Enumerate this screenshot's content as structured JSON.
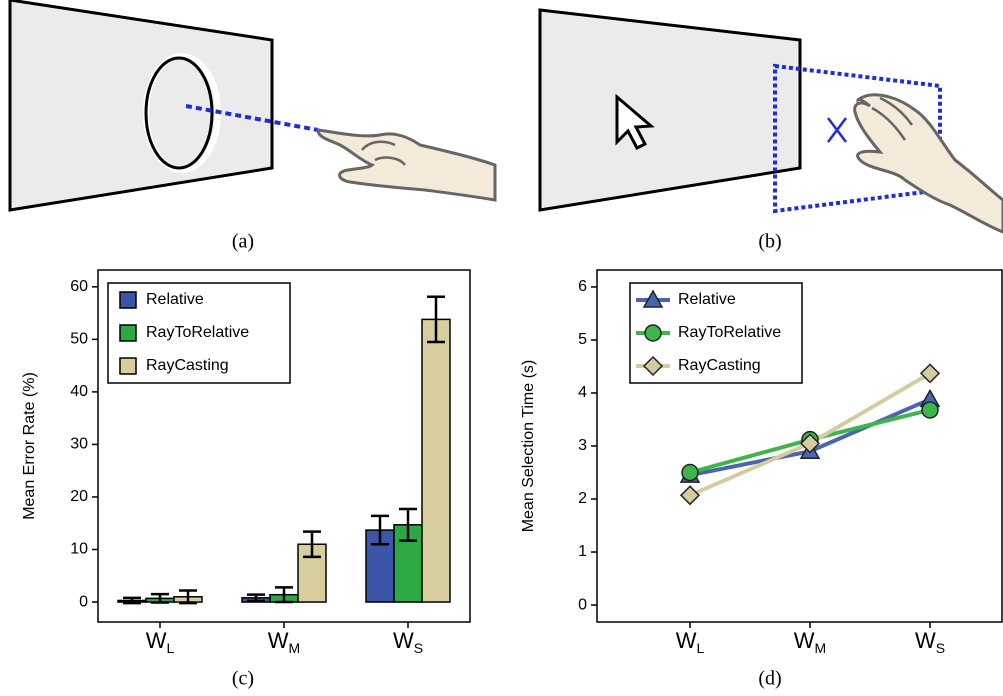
{
  "captions": [
    "(a)",
    "(b)",
    "(c)",
    "(d)"
  ],
  "chart_data": [
    {
      "type": "bar",
      "y_label": "Mean Error Rate (%)",
      "categories": [
        "WL",
        "WM",
        "WS"
      ],
      "series": [
        {
          "name": "Relative",
          "color": "#3b56a8",
          "values": [
            0.3,
            0.8,
            13.7
          ],
          "errors": [
            0.5,
            0.6,
            2.7
          ]
        },
        {
          "name": "RayToRelative",
          "color": "#2ca844",
          "values": [
            0.7,
            1.4,
            14.7
          ],
          "errors": [
            0.8,
            1.4,
            3.0
          ]
        },
        {
          "name": "RayCasting",
          "color": "#d7cd9f",
          "values": [
            1.0,
            11.0,
            53.8
          ],
          "errors": [
            1.2,
            2.4,
            4.3
          ]
        }
      ],
      "ylim": [
        -3.8,
        63.2
      ],
      "yticks": [
        0,
        10,
        20,
        30,
        40,
        50,
        60
      ],
      "legend": "upper left"
    },
    {
      "type": "line",
      "y_label": "Mean Selection Time (s)",
      "categories": [
        "WL",
        "WM",
        "WS"
      ],
      "series": [
        {
          "name": "Relative",
          "color": "#4a64b0",
          "marker": "triangle",
          "values": [
            2.45,
            2.9,
            3.88
          ]
        },
        {
          "name": "RayToRelative",
          "color": "#3cb54a",
          "marker": "circle",
          "values": [
            2.5,
            3.12,
            3.68
          ]
        },
        {
          "name": "RayCasting",
          "color": "#d5cba0",
          "marker": "diamond",
          "values": [
            2.07,
            3.05,
            4.37
          ]
        }
      ],
      "ylim": [
        -0.32,
        6.32
      ],
      "yticks": [
        0,
        1,
        2,
        3,
        4,
        5,
        6
      ],
      "legend": "upper left"
    }
  ]
}
